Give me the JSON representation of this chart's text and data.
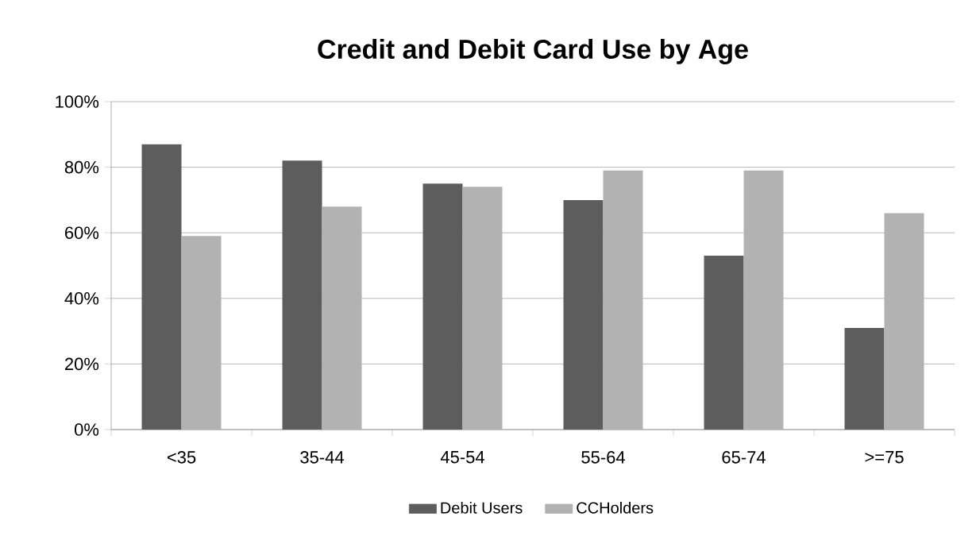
{
  "chart_data": {
    "type": "bar",
    "title": "Credit and Debit Card Use by Age",
    "categories": [
      "<35",
      "35-44",
      "45-54",
      "55-64",
      "65-74",
      ">=75"
    ],
    "series": [
      {
        "name": "Debit Users",
        "color": "#5d5d5d",
        "values": [
          87,
          82,
          75,
          70,
          53,
          31
        ]
      },
      {
        "name": "CCHolders",
        "color": "#b2b2b2",
        "values": [
          59,
          68,
          74,
          79,
          79,
          66
        ]
      }
    ],
    "ylim": [
      0,
      100
    ],
    "yticks": [
      {
        "value": 0,
        "label": "0%"
      },
      {
        "value": 20,
        "label": "20%"
      },
      {
        "value": 40,
        "label": "40%"
      },
      {
        "value": 60,
        "label": "60%"
      },
      {
        "value": 80,
        "label": "80%"
      },
      {
        "value": 100,
        "label": "100%"
      }
    ],
    "grid": "y",
    "legend": "bottom"
  }
}
